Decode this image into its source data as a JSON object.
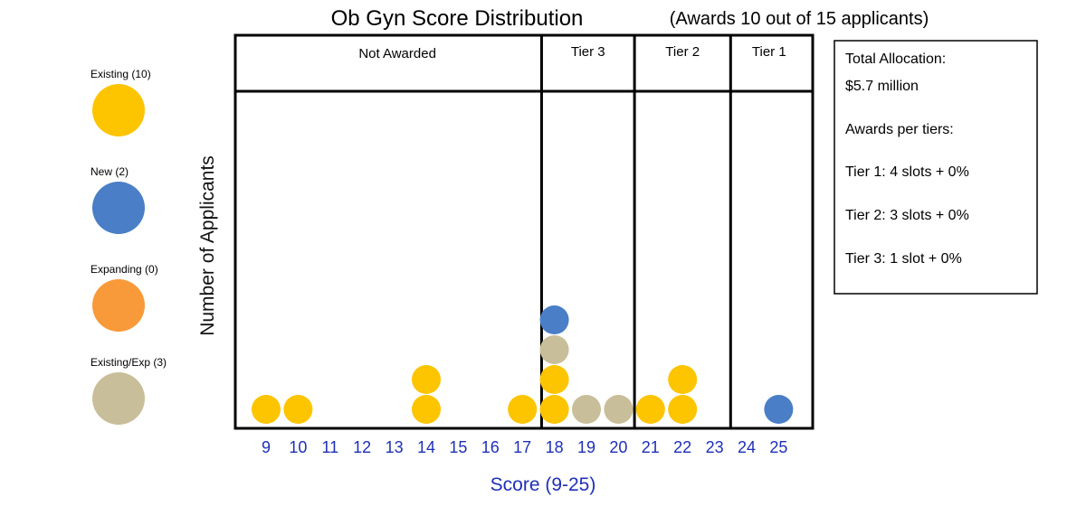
{
  "chart_data": {
    "type": "scatter",
    "title": "Ob Gyn Score Distribution",
    "subtitle": "(Awards 10 out of 15 applicants)",
    "xlabel": "Score (9-25)",
    "ylabel": "Number of Applicants",
    "xlim": [
      9,
      25
    ],
    "ylim": [
      0,
      4
    ],
    "x_ticks": [
      "9",
      "10",
      "11",
      "12",
      "13",
      "14",
      "15",
      "16",
      "17",
      "18",
      "19",
      "20",
      "21",
      "22",
      "23",
      "24",
      "25"
    ],
    "grid": false,
    "legend_position": "left",
    "series": [
      {
        "name": "Existing (10)",
        "color": "#FDC400",
        "points": [
          {
            "x": 9,
            "y": 1
          },
          {
            "x": 10,
            "y": 1
          },
          {
            "x": 14,
            "y": 1
          },
          {
            "x": 14,
            "y": 2
          },
          {
            "x": 17,
            "y": 1
          },
          {
            "x": 18,
            "y": 1
          },
          {
            "x": 18,
            "y": 2
          },
          {
            "x": 21,
            "y": 1
          },
          {
            "x": 22,
            "y": 1
          },
          {
            "x": 22,
            "y": 2
          }
        ]
      },
      {
        "name": "New (2)",
        "color": "#4A7EC6",
        "points": [
          {
            "x": 18,
            "y": 4
          },
          {
            "x": 25,
            "y": 1
          }
        ]
      },
      {
        "name": "Expanding (0)",
        "color": "#F99A3A",
        "points": []
      },
      {
        "name": "Existing/Exp (3)",
        "color": "#C9BE9A",
        "points": [
          {
            "x": 18,
            "y": 3
          },
          {
            "x": 19,
            "y": 1
          },
          {
            "x": 20,
            "y": 1
          }
        ]
      }
    ],
    "regions": [
      {
        "label": "Not Awarded",
        "from": 8.6,
        "to": 17.6
      },
      {
        "label": "Tier 3",
        "from": 17.6,
        "to": 20.5
      },
      {
        "label": "Tier 2",
        "from": 20.5,
        "to": 23.5
      },
      {
        "label": "Tier 1",
        "from": 23.5,
        "to": 25.9
      }
    ]
  },
  "info_box": {
    "lines": [
      "Total Allocation:",
      "$5.7 million",
      "Awards per tiers:",
      "Tier 1: 4 slots + 0%",
      "Tier 2: 3 slots + 0%",
      "Tier 3: 1 slot + 0%"
    ]
  }
}
